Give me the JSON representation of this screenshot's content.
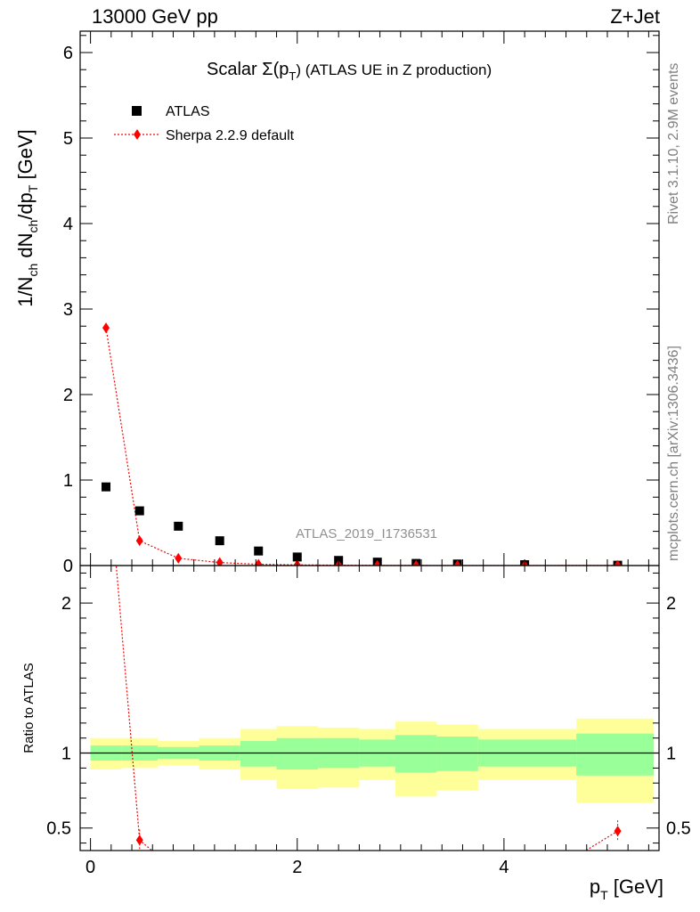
{
  "header": {
    "left": "13000 GeV pp",
    "right": "Z+Jet"
  },
  "side": {
    "rivet": "Rivet 3.1.10,  2.9M events",
    "mcplots": "mcplots.cern.ch [arXiv:1306.3436]"
  },
  "chart_data": [
    {
      "type": "scatter",
      "title": "Scalar Σ(p_T) (ATLAS UE in Z production)",
      "title_parts": {
        "main": "Scalar Σ(p",
        "sub": "T",
        "rest": ") (ATLAS UE in Z production)"
      },
      "ylabel": "1/N_ch dN_ch/dp_T [GeV]",
      "ylabel_parts": {
        "a": "1/N",
        "a_sub": "ch",
        "b": " dN",
        "b_sub": "ch",
        "c": "/dp",
        "c_sub": "T",
        "d": " [GeV]"
      },
      "ylim": [
        0,
        6.25
      ],
      "xlim": [
        -0.1,
        5.5
      ],
      "y_ticks": [
        0,
        1,
        2,
        3,
        4,
        5,
        6
      ],
      "y_tick_labels": [
        "0",
        "1",
        "2",
        "3",
        "4",
        "5",
        "6"
      ],
      "watermark": "ATLAS_2019_I1736531",
      "legend_position": "top-left",
      "series": [
        {
          "name": "ATLAS",
          "marker": "square",
          "color": "#000000",
          "x": [
            0.15,
            0.475,
            0.85,
            1.25,
            1.625,
            2.0,
            2.4,
            2.775,
            3.15,
            3.55,
            4.2,
            5.1
          ],
          "y": [
            0.92,
            0.64,
            0.46,
            0.29,
            0.17,
            0.1,
            0.06,
            0.04,
            0.025,
            0.018,
            0.01,
            0.004
          ]
        },
        {
          "name": "Sherpa 2.2.9 default",
          "marker": "diamond",
          "color": "#ff0000",
          "x": [
            0.15,
            0.475,
            0.85,
            1.25,
            1.625,
            2.0,
            2.4,
            2.775,
            3.15,
            3.55,
            4.2,
            5.1
          ],
          "y": [
            2.78,
            0.29,
            0.085,
            0.035,
            0.015,
            0.008,
            0.004,
            0.002,
            0.001,
            0.0007,
            0.0003,
            0.002
          ]
        }
      ]
    },
    {
      "type": "scatter",
      "ylabel": "Ratio to ATLAS",
      "xlabel": "p_T [GeV]",
      "xlabel_parts": {
        "main": "p",
        "sub": "T",
        "rest": " [GeV]"
      },
      "ylim": [
        0.35,
        2.25
      ],
      "xlim": [
        -0.1,
        5.5
      ],
      "y_ticks": [
        0.5,
        1,
        2
      ],
      "y_tick_labels": [
        "0.5",
        "1",
        "2"
      ],
      "x_ticks": [
        0,
        2,
        4
      ],
      "x_tick_labels": [
        "0",
        "2",
        "4"
      ],
      "bins": [
        0,
        0.3,
        0.65,
        1.05,
        1.45,
        1.8,
        2.2,
        2.6,
        2.95,
        3.35,
        3.75,
        4.7,
        5.45
      ],
      "band_green": [
        [
          0.95,
          1.05
        ],
        [
          0.95,
          1.05
        ],
        [
          0.96,
          1.04
        ],
        [
          0.95,
          1.05
        ],
        [
          0.91,
          1.08
        ],
        [
          0.89,
          1.1
        ],
        [
          0.9,
          1.1
        ],
        [
          0.91,
          1.09
        ],
        [
          0.87,
          1.12
        ],
        [
          0.88,
          1.11
        ],
        [
          0.91,
          1.09
        ],
        [
          0.85,
          1.13
        ]
      ],
      "band_yellow": [
        [
          0.89,
          1.1
        ],
        [
          0.9,
          1.1
        ],
        [
          0.92,
          1.08
        ],
        [
          0.89,
          1.1
        ],
        [
          0.82,
          1.16
        ],
        [
          0.76,
          1.18
        ],
        [
          0.77,
          1.17
        ],
        [
          0.82,
          1.16
        ],
        [
          0.71,
          1.21
        ],
        [
          0.75,
          1.19
        ],
        [
          0.82,
          1.16
        ],
        [
          0.67,
          1.23
        ]
      ],
      "ratio_line": [
        [
          0.15,
          3.05
        ],
        [
          0.475,
          0.42
        ],
        [
          0.85,
          0.2
        ],
        [
          4.2,
          0.1
        ],
        [
          5.1,
          0.48
        ]
      ],
      "ratio_points": [
        [
          0.475,
          0.42
        ],
        [
          5.1,
          0.48
        ]
      ]
    }
  ]
}
